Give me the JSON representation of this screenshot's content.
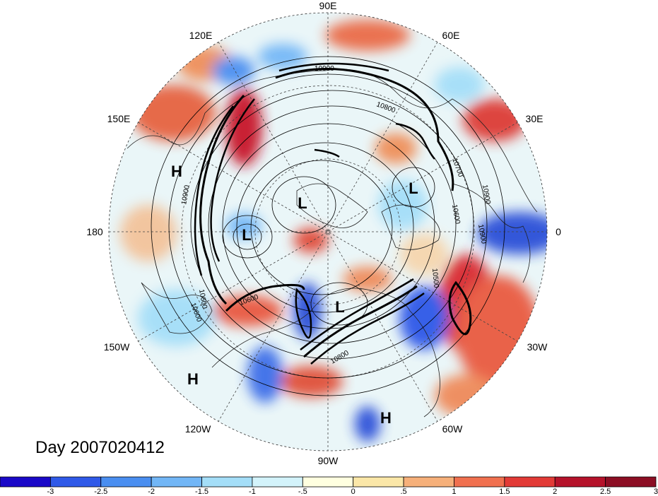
{
  "figure": {
    "date_label": "Day 2007020412"
  },
  "map_labels": {
    "longitudes": [
      "90E",
      "60E",
      "30E",
      "0",
      "30W",
      "60W",
      "90W",
      "120W",
      "150W",
      "180",
      "150E",
      "120E"
    ],
    "contours": [
      "10900",
      "10800",
      "10700",
      "10900",
      "10600",
      "10900",
      "10600",
      "10500",
      "10600",
      "10900",
      "10600",
      "10800"
    ],
    "pressure_centers": [
      "H",
      "L",
      "L",
      "L",
      "L",
      "H",
      "H"
    ]
  },
  "colorbar": {
    "tick_labels": [
      "-3",
      "-2.5",
      "-2",
      "-1.5",
      "-1",
      "-.5",
      "0",
      ".5",
      "1",
      "1.5",
      "2",
      "2.5",
      "3"
    ],
    "colors": [
      "#1a08c8",
      "#2f59e8",
      "#4a8ef0",
      "#72b6f6",
      "#a4def8",
      "#d3f3fb",
      "#ffffe0",
      "#fbe7a8",
      "#f6b07a",
      "#f0704f",
      "#e23a36",
      "#b5122a",
      "#8c0e24"
    ]
  }
}
